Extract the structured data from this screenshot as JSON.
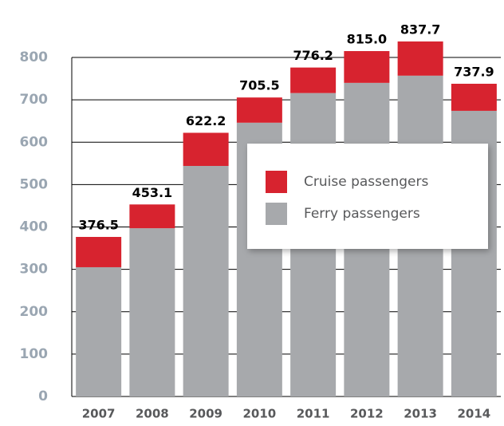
{
  "chart_data": {
    "type": "bar",
    "stacked": true,
    "categories": [
      "2007",
      "2008",
      "2009",
      "2010",
      "2011",
      "2012",
      "2013",
      "2014"
    ],
    "series": [
      {
        "name": "Ferry passengers",
        "color": "#a7a9ac",
        "values": [
          305,
          397,
          544,
          646,
          716,
          740,
          757,
          674
        ]
      },
      {
        "name": "Cruise passengers",
        "color": "#d7232f",
        "values": [
          71.5,
          56.1,
          78.2,
          59.5,
          60.2,
          75,
          80.7,
          63.9
        ]
      }
    ],
    "total_labels": [
      "376.5",
      "453.1",
      "622.2",
      "705.5",
      "776.2",
      "815.0",
      "837.7",
      "737.9"
    ],
    "ylim": [
      0,
      800
    ],
    "yticks": [
      0,
      100,
      200,
      300,
      400,
      500,
      600,
      700,
      800
    ],
    "grid": true
  }
}
